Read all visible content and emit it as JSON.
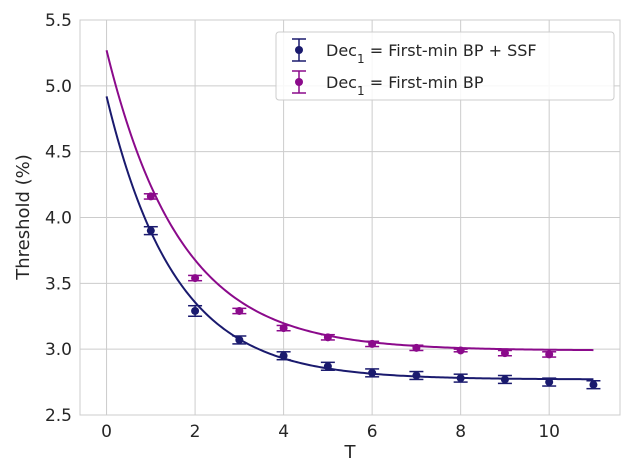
{
  "chart_data": {
    "type": "scatter",
    "title": "",
    "xlabel": "T",
    "ylabel": "Threshold (%)",
    "xlim": [
      -0.6,
      11.6
    ],
    "ylim": [
      2.5,
      5.5
    ],
    "xticks": [
      0,
      2,
      4,
      6,
      8,
      10
    ],
    "xtick_labels": [
      "0",
      "2",
      "4",
      "6",
      "8",
      "10"
    ],
    "yticks": [
      2.5,
      3.0,
      3.5,
      4.0,
      4.5,
      5.0,
      5.5
    ],
    "ytick_labels": [
      "2.5",
      "3.0",
      "3.5",
      "4.0",
      "4.5",
      "5.0",
      "5.5"
    ],
    "grid": true,
    "legend_position": "top-right",
    "series": [
      {
        "legend_main": "Dec",
        "legend_sub": "1",
        "legend_rest": " = First-min BP + SSF",
        "color": "#1a1a6e",
        "x": [
          1,
          2,
          3,
          4,
          5,
          6,
          7,
          8,
          9,
          10,
          11
        ],
        "y": [
          3.9,
          3.29,
          3.07,
          2.95,
          2.87,
          2.82,
          2.8,
          2.78,
          2.77,
          2.75,
          2.73
        ],
        "yerr": [
          0.03,
          0.04,
          0.03,
          0.03,
          0.03,
          0.03,
          0.03,
          0.03,
          0.03,
          0.03,
          0.03
        ],
        "fit": {
          "a": 2.77,
          "b": 2.15,
          "k": 0.65
        }
      },
      {
        "legend_main": "Dec",
        "legend_sub": "1",
        "legend_rest": " = First-min BP",
        "color": "#8b0a8b",
        "x": [
          1,
          2,
          3,
          4,
          5,
          6,
          7,
          8,
          9,
          10
        ],
        "y": [
          4.16,
          3.54,
          3.29,
          3.16,
          3.09,
          3.04,
          3.01,
          2.99,
          2.97,
          2.96
        ],
        "yerr": [
          0.02,
          0.02,
          0.02,
          0.02,
          0.02,
          0.02,
          0.02,
          0.01,
          0.02,
          0.02
        ],
        "fit": {
          "a": 2.99,
          "b": 2.28,
          "k": 0.6
        }
      }
    ]
  }
}
